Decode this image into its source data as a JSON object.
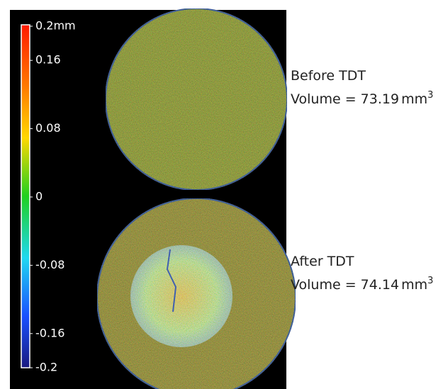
{
  "colorbar": {
    "lim": [
      -0.2,
      0.2
    ],
    "ticks": [
      {
        "value": 0.2,
        "label": "0.2mm"
      },
      0.16,
      0.08,
      0,
      -0.08,
      -0.16,
      -0.2
    ]
  },
  "samples": [
    {
      "label": "Before TDT",
      "volume_prefix": "Volume =",
      "volume": 73.19,
      "unit": "mm",
      "unit_exponent": "3"
    },
    {
      "label": "After TDT",
      "volume_prefix": "Volume =",
      "volume": 74.14,
      "unit": "mm",
      "unit_exponent": "3"
    }
  ]
}
